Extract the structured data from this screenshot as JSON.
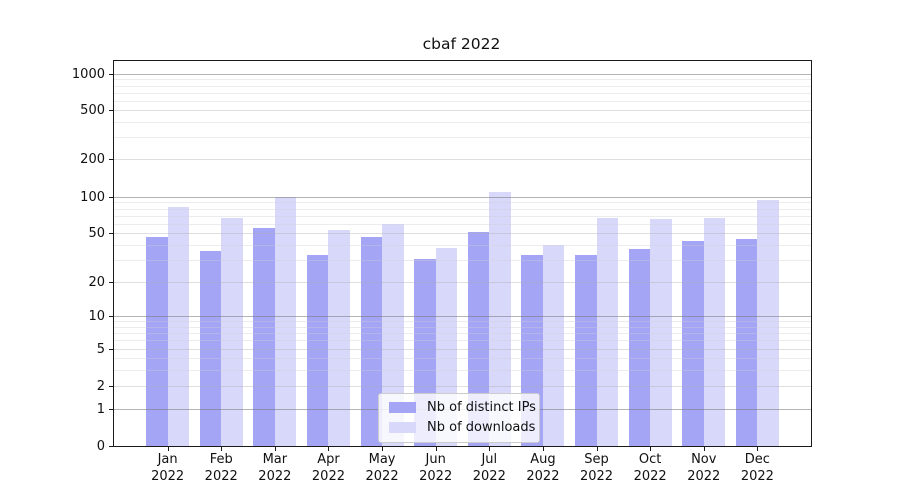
{
  "chart_data": {
    "type": "bar",
    "title": "cbaf 2022",
    "categories": [
      "Jan 2022",
      "Feb 2022",
      "Mar 2022",
      "Apr 2022",
      "May 2022",
      "Jun 2022",
      "Jul 2022",
      "Aug 2022",
      "Sep 2022",
      "Oct 2022",
      "Nov 2022",
      "Dec 2022"
    ],
    "x_tick_labels": [
      {
        "line1": "Jan",
        "line2": "2022"
      },
      {
        "line1": "Feb",
        "line2": "2022"
      },
      {
        "line1": "Mar",
        "line2": "2022"
      },
      {
        "line1": "Apr",
        "line2": "2022"
      },
      {
        "line1": "May",
        "line2": "2022"
      },
      {
        "line1": "Jun",
        "line2": "2022"
      },
      {
        "line1": "Jul",
        "line2": "2022"
      },
      {
        "line1": "Aug",
        "line2": "2022"
      },
      {
        "line1": "Sep",
        "line2": "2022"
      },
      {
        "line1": "Oct",
        "line2": "2022"
      },
      {
        "line1": "Nov",
        "line2": "2022"
      },
      {
        "line1": "Dec",
        "line2": "2022"
      }
    ],
    "series": [
      {
        "name": "Nb of distinct IPs",
        "color": "#a5a5f5",
        "values": [
          46,
          36,
          55,
          33,
          46,
          31,
          51,
          33,
          33,
          37,
          43,
          45
        ]
      },
      {
        "name": "Nb of downloads",
        "color": "#d8d8fa",
        "values": [
          83,
          67,
          100,
          53,
          59,
          38,
          110,
          40,
          67,
          66,
          67,
          95
        ]
      }
    ],
    "y_axis": {
      "scale": "symlog",
      "ticks": [
        0,
        1,
        2,
        5,
        10,
        20,
        50,
        100,
        200,
        500,
        1000
      ],
      "tick_labels": [
        "0",
        "1",
        "2",
        "5",
        "10",
        "20",
        "50",
        "100",
        "200",
        "500",
        "1000"
      ]
    },
    "xlabel": "",
    "ylabel": "",
    "grid": true,
    "legend": {
      "position": "lower center",
      "entries": [
        "Nb of distinct IPs",
        "Nb of downloads"
      ]
    }
  }
}
